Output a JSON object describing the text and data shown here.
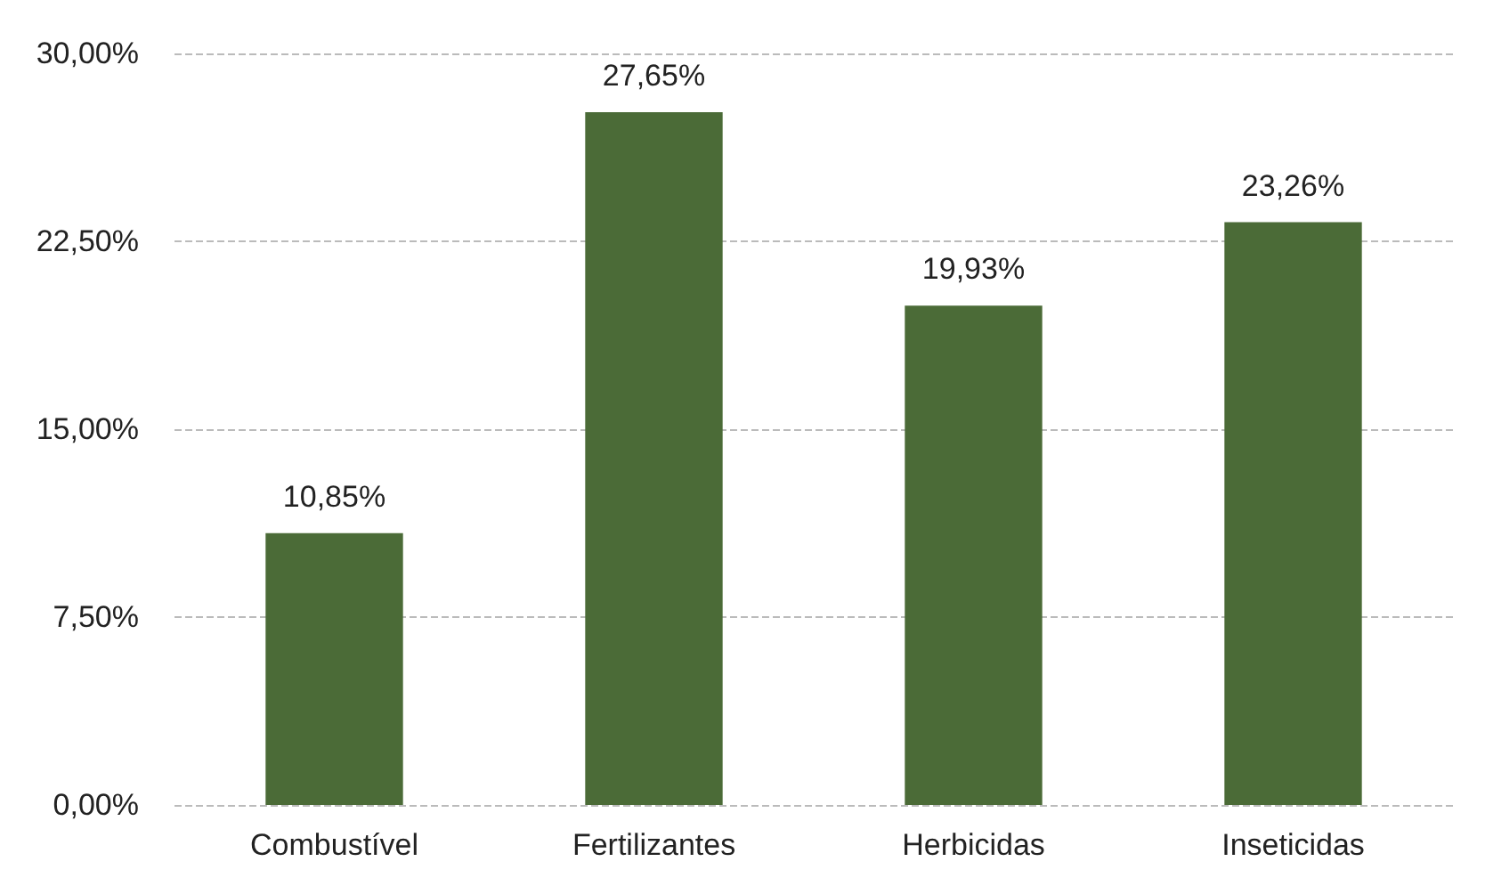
{
  "chart_data": {
    "type": "bar",
    "categories": [
      "Combustível",
      "Fertilizantes",
      "Herbicidas",
      "Inseticidas"
    ],
    "values": [
      10.85,
      27.65,
      19.93,
      23.26
    ],
    "value_labels": [
      "10,85%",
      "27,65%",
      "19,93%",
      "23,26%"
    ],
    "color": "#4b6b37",
    "ylim": [
      0,
      30
    ],
    "yticks": [
      {
        "value": 0,
        "label": "0,00%"
      },
      {
        "value": 7.5,
        "label": "7,50%"
      },
      {
        "value": 15,
        "label": "15,00%"
      },
      {
        "value": 22.5,
        "label": "22,50%"
      },
      {
        "value": 30,
        "label": "30,00%"
      }
    ],
    "grid": "y"
  }
}
